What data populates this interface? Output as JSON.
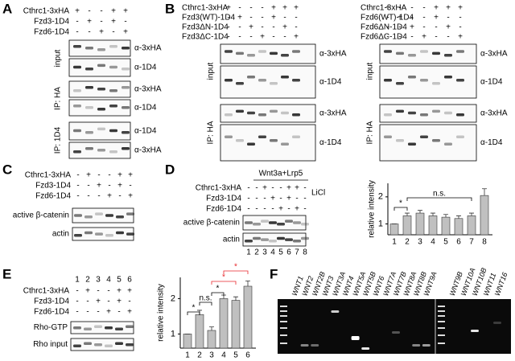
{
  "panels": {
    "A": {
      "letter": "A",
      "rows": [
        {
          "label": "Cthrc1-3xHA",
          "signs": [
            "+",
            "-",
            "-",
            "+",
            "+"
          ]
        },
        {
          "label": "Fzd3-1D4",
          "signs": [
            "-",
            "+",
            "-",
            "+",
            "-"
          ]
        },
        {
          "label": "Fzd6-1D4",
          "signs": [
            "-",
            "-",
            "+",
            "-",
            "+"
          ]
        }
      ],
      "groups": [
        {
          "label": "input",
          "blots": [
            "α-3xHA",
            "α-1D4"
          ]
        },
        {
          "label": "IP: HA",
          "blots": [
            "α-3xHA",
            "α-1D4"
          ]
        },
        {
          "label": "IP: 1D4",
          "blots": [
            "α-1D4",
            "α-3xHA"
          ]
        }
      ]
    },
    "B1": {
      "letter": "B",
      "rows": [
        {
          "label": "Cthrc1-3xHA",
          "signs": [
            "+",
            "-",
            "-",
            "-",
            "+",
            "+",
            "+"
          ]
        },
        {
          "label": "Fzd3(WT)-1D4",
          "signs": [
            "-",
            "+",
            "-",
            "-",
            "+",
            "-",
            "-"
          ]
        },
        {
          "label": "Fzd3ΔN-1D4",
          "signs": [
            "-",
            "-",
            "+",
            "-",
            "-",
            "+",
            "-"
          ]
        },
        {
          "label": "Fzd3ΔC-1D4",
          "signs": [
            "-",
            "-",
            "-",
            "+",
            "-",
            "-",
            "+"
          ]
        }
      ],
      "groups": [
        {
          "label": "input",
          "blots": [
            "α-3xHA",
            "α-1D4"
          ]
        },
        {
          "label": "IP: HA",
          "blots": [
            "α-3xHA",
            "α-1D4"
          ]
        }
      ]
    },
    "B2": {
      "rows": [
        {
          "label": "Cthrc1-3xHA",
          "signs": [
            "+",
            "-",
            "-",
            "-",
            "+",
            "+",
            "+"
          ]
        },
        {
          "label": "Fzd6(WT)-1D4",
          "signs": [
            "-",
            "+",
            "-",
            "-",
            "+",
            "-",
            "-"
          ]
        },
        {
          "label": "Fzd6ΔN-1D4",
          "signs": [
            "-",
            "-",
            "+",
            "-",
            "-",
            "+",
            "-"
          ]
        },
        {
          "label": "Fzd6ΔC-1D4",
          "signs": [
            "-",
            "-",
            "-",
            "+",
            "-",
            "-",
            "+"
          ]
        }
      ],
      "groups": [
        {
          "label": "input",
          "blots": [
            "α-3xHA",
            "α-1D4"
          ]
        },
        {
          "label": "IP: HA",
          "blots": [
            "α-3xHA",
            "α-1D4"
          ]
        }
      ]
    },
    "C": {
      "letter": "C",
      "rows": [
        {
          "label": "Cthrc1-3xHA",
          "signs": [
            "-",
            "+",
            "-",
            "-",
            "+",
            "+"
          ]
        },
        {
          "label": "Fzd3-1D4",
          "signs": [
            "-",
            "-",
            "+",
            "-",
            "+",
            "-"
          ]
        },
        {
          "label": "Fzd6-1D4",
          "signs": [
            "-",
            "-",
            "-",
            "+",
            "-",
            "+"
          ]
        }
      ],
      "blots": [
        "active β-catenin",
        "actin"
      ]
    },
    "D": {
      "letter": "D",
      "header": "Wnt3a+Lrp5",
      "treatment": "LiCl",
      "rows": [
        {
          "label": "Cthrc1-3xHA",
          "signs": [
            "-",
            "-",
            "+",
            "-",
            "-",
            "+",
            "+",
            "-"
          ]
        },
        {
          "label": "Fzd3-1D4",
          "signs": [
            "-",
            "-",
            "-",
            "+",
            "-",
            "+",
            "-",
            "-"
          ]
        },
        {
          "label": "Fzd6-1D4",
          "signs": [
            "-",
            "-",
            "-",
            "-",
            "+",
            "-",
            "+",
            "-"
          ]
        }
      ],
      "blots": [
        "active β-catenin",
        "actin"
      ],
      "lanes": [
        "1",
        "2",
        "3",
        "4",
        "5",
        "6",
        "7",
        "8"
      ]
    },
    "E": {
      "letter": "E",
      "lanes": [
        "1",
        "2",
        "3",
        "4",
        "5",
        "6"
      ],
      "rows": [
        {
          "label": "Cthrc1-3xHA",
          "signs": [
            "-",
            "+",
            "-",
            "-",
            "+",
            "+"
          ]
        },
        {
          "label": "Fzd3-1D4",
          "signs": [
            "-",
            "-",
            "+",
            "-",
            "+",
            "-"
          ]
        },
        {
          "label": "Fzd6-1D4",
          "signs": [
            "-",
            "-",
            "-",
            "+",
            "-",
            "+"
          ]
        }
      ],
      "blots": [
        "Rho-GTP",
        "Rho input"
      ]
    },
    "F": {
      "letter": "F",
      "lanes": [
        "WNT1",
        "WNT2",
        "WNT2B",
        "WNT3",
        "WNT3A",
        "WNT4",
        "WNT5A",
        "WNT5B",
        "WNT6",
        "WNT7A",
        "WNT7B",
        "WNT8A",
        "WNT8B",
        "WNT9A",
        "WNT9B",
        "WNT10A",
        "WNT10B",
        "WNT11",
        "WNT16"
      ]
    }
  },
  "chart_data": [
    {
      "type": "bar",
      "ylabel": "relative intensity",
      "categories": [
        "1",
        "2",
        "3",
        "4",
        "5",
        "6",
        "7",
        "8"
      ],
      "values": [
        1,
        1.3,
        1.4,
        1.3,
        1.25,
        1.2,
        1.3,
        2.05
      ],
      "errors": [
        0,
        0.1,
        0.1,
        0.1,
        0.1,
        0.1,
        0.1,
        0.25
      ],
      "ylim": [
        0.6,
        2.5
      ],
      "yticks": [
        1,
        2
      ],
      "color": "#c0c0c0",
      "annotations": [
        {
          "text": "*",
          "color": "#000000"
        },
        {
          "text": "n.s.",
          "color": "#000000"
        }
      ]
    },
    {
      "type": "bar",
      "ylabel": "relative intensity",
      "categories": [
        "1",
        "2",
        "3",
        "4",
        "5",
        "6"
      ],
      "values": [
        1,
        1.55,
        1.1,
        2.0,
        1.95,
        2.35
      ],
      "errors": [
        0,
        0.12,
        0.1,
        0.1,
        0.1,
        0.15
      ],
      "ylim": [
        0.6,
        2.6
      ],
      "yticks": [
        1,
        2
      ],
      "color": "#c0c0c0",
      "annotations": [
        {
          "text": "*",
          "color": "#000000"
        },
        {
          "text": "n.s.",
          "color": "#000000"
        },
        {
          "text": "*",
          "color": "#000000"
        },
        {
          "text": "*",
          "color": "#e8262b"
        },
        {
          "text": "*",
          "color": "#e8262b"
        }
      ]
    }
  ]
}
